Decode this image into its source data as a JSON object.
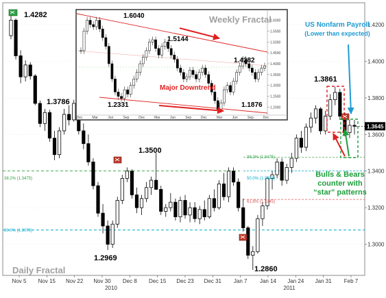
{
  "chart_data": {
    "type": "candlestick",
    "title": "Daily Fractal",
    "x_tick_labels": [
      "Nov 5",
      "Nov 15",
      "Nov 22",
      "Nov 30",
      "Dec 8",
      "Dec 15",
      "Dec 23",
      "Dec 31",
      "Jan 7",
      "Jan 14",
      "Jan 24",
      "Jan 31",
      "Feb 7"
    ],
    "x_year_labels": [
      "2010",
      "2011"
    ],
    "y_tick_labels": [
      "1.4200",
      "1.4000",
      "1.3800",
      "1.3600",
      "1.3400",
      "1.3200",
      "1.3000"
    ],
    "ylim": [
      1.283,
      1.432
    ],
    "current_price_label": "1.3645",
    "price_labels": [
      "1.4282",
      "1.3786",
      "1.3500",
      "1.2969",
      "1.2860",
      "1.3861"
    ],
    "fib_labels": [
      "38.2% (1.3475)",
      "50.0% (1.3401)",
      "61.8% (1.3347)",
      "38.2% (1.3342)",
      "61.8% (1.3245)",
      "50.0% (1.3078)"
    ],
    "candles": [
      [
        1.414,
        1.4282,
        1.412,
        1.4225
      ],
      [
        1.4225,
        1.4235,
        1.401,
        1.403
      ],
      [
        1.403,
        1.406,
        1.388,
        1.3915
      ],
      [
        1.3915,
        1.4005,
        1.389,
        1.398
      ],
      [
        1.398,
        1.3995,
        1.39,
        1.392
      ],
      [
        1.392,
        1.393,
        1.376,
        1.377
      ],
      [
        1.377,
        1.3786,
        1.364,
        1.366
      ],
      [
        1.366,
        1.374,
        1.362,
        1.372
      ],
      [
        1.372,
        1.3735,
        1.356,
        1.358
      ],
      [
        1.358,
        1.362,
        1.346,
        1.349
      ],
      [
        1.349,
        1.364,
        1.347,
        1.362
      ],
      [
        1.362,
        1.374,
        1.36,
        1.371
      ],
      [
        1.371,
        1.376,
        1.365,
        1.368
      ],
      [
        1.368,
        1.379,
        1.367,
        1.377
      ],
      [
        1.377,
        1.378,
        1.36,
        1.362
      ],
      [
        1.362,
        1.366,
        1.352,
        1.355
      ],
      [
        1.355,
        1.36,
        1.343,
        1.345
      ],
      [
        1.345,
        1.347,
        1.33,
        1.332
      ],
      [
        1.332,
        1.334,
        1.315,
        1.317
      ],
      [
        1.317,
        1.322,
        1.306,
        1.31
      ],
      [
        1.31,
        1.313,
        1.2969,
        1.3
      ],
      [
        1.3,
        1.313,
        1.298,
        1.311
      ],
      [
        1.311,
        1.326,
        1.309,
        1.324
      ],
      [
        1.324,
        1.338,
        1.322,
        1.336
      ],
      [
        1.336,
        1.342,
        1.334,
        1.34
      ],
      [
        1.34,
        1.341,
        1.325,
        1.327
      ],
      [
        1.327,
        1.331,
        1.317,
        1.32
      ],
      [
        1.32,
        1.327,
        1.316,
        1.325
      ],
      [
        1.325,
        1.334,
        1.323,
        1.331
      ],
      [
        1.331,
        1.337,
        1.327,
        1.335
      ],
      [
        1.335,
        1.35,
        1.33,
        1.33
      ],
      [
        1.33,
        1.332,
        1.316,
        1.318
      ],
      [
        1.318,
        1.322,
        1.315,
        1.32
      ],
      [
        1.32,
        1.328,
        1.318,
        1.323
      ],
      [
        1.323,
        1.325,
        1.313,
        1.315
      ],
      [
        1.315,
        1.326,
        1.312,
        1.324
      ],
      [
        1.324,
        1.327,
        1.314,
        1.316
      ],
      [
        1.316,
        1.323,
        1.312,
        1.32
      ],
      [
        1.32,
        1.323,
        1.312,
        1.314
      ],
      [
        1.314,
        1.321,
        1.311,
        1.319
      ],
      [
        1.319,
        1.324,
        1.313,
        1.315
      ],
      [
        1.315,
        1.327,
        1.314,
        1.325
      ],
      [
        1.325,
        1.33,
        1.318,
        1.32
      ],
      [
        1.32,
        1.335,
        1.319,
        1.333
      ],
      [
        1.333,
        1.339,
        1.324,
        1.326
      ],
      [
        1.326,
        1.342,
        1.323,
        1.34
      ],
      [
        1.34,
        1.342,
        1.332,
        1.334
      ],
      [
        1.334,
        1.336,
        1.318,
        1.32
      ],
      [
        1.32,
        1.325,
        1.307,
        1.309
      ],
      [
        1.309,
        1.31,
        1.292,
        1.294
      ],
      [
        1.294,
        1.299,
        1.286,
        1.296
      ],
      [
        1.296,
        1.316,
        1.295,
        1.314
      ],
      [
        1.314,
        1.323,
        1.31,
        1.321
      ],
      [
        1.321,
        1.337,
        1.319,
        1.336
      ],
      [
        1.336,
        1.34,
        1.33,
        1.338
      ],
      [
        1.338,
        1.347,
        1.336,
        1.345
      ],
      [
        1.345,
        1.347,
        1.332,
        1.335
      ],
      [
        1.335,
        1.344,
        1.333,
        1.342
      ],
      [
        1.342,
        1.35,
        1.339,
        1.347
      ],
      [
        1.347,
        1.36,
        1.345,
        1.358
      ],
      [
        1.358,
        1.362,
        1.35,
        1.353
      ],
      [
        1.353,
        1.366,
        1.351,
        1.364
      ],
      [
        1.364,
        1.372,
        1.361,
        1.369
      ],
      [
        1.369,
        1.376,
        1.366,
        1.374
      ],
      [
        1.374,
        1.375,
        1.36,
        1.362
      ],
      [
        1.362,
        1.373,
        1.36,
        1.37
      ],
      [
        1.37,
        1.382,
        1.368,
        1.379
      ],
      [
        1.379,
        1.3861,
        1.376,
        1.383
      ],
      [
        1.383,
        1.385,
        1.368,
        1.37
      ],
      [
        1.37,
        1.372,
        1.359,
        1.361
      ],
      [
        1.361,
        1.368,
        1.358,
        1.365
      ],
      [
        1.365,
        1.368,
        1.36,
        1.3645
      ]
    ]
  },
  "inset": {
    "title": "Weekly Fractal",
    "labels": [
      "1.6040",
      "1.5144",
      "1.4282",
      "1.2331",
      "1.1876"
    ],
    "trend_label": "Major Downtrend",
    "y_ticks": [
      "1.6000",
      "1.5500",
      "1.5000",
      "1.4500",
      "1.4000",
      "1.3500",
      "1.3000",
      "1.2500",
      "1.2000"
    ],
    "x_ticks": [
      "Dec",
      "Mar",
      "Jun",
      "Sep",
      "Dec",
      "Mar",
      "Jun",
      "Sep",
      "Dec",
      "Mar",
      "Jun",
      "Sep",
      "Dec"
    ],
    "closes": [
      1.46,
      1.55,
      1.6,
      1.58,
      1.57,
      1.6,
      1.56,
      1.52,
      1.48,
      1.4,
      1.33,
      1.27,
      1.25,
      1.24,
      1.28,
      1.26,
      1.3,
      1.33,
      1.36,
      1.4,
      1.43,
      1.46,
      1.5,
      1.51,
      1.47,
      1.44,
      1.48,
      1.5,
      1.47,
      1.44,
      1.42,
      1.38,
      1.36,
      1.33,
      1.34,
      1.37,
      1.35,
      1.33,
      1.36,
      1.38,
      1.35,
      1.31,
      1.27,
      1.23,
      1.19,
      1.22,
      1.28,
      1.3,
      1.27,
      1.32,
      1.36,
      1.39,
      1.42,
      1.4,
      1.38,
      1.36,
      1.33,
      1.36,
      1.38,
      1.39
    ]
  },
  "annotations": {
    "nfp": "US Nonfarm Payroll",
    "nfp_sub": "(Lower than expected)",
    "bulls_line1": "Bulls & Bears",
    "bulls_line2": "counter with",
    "bulls_line3": "“star” patterns"
  },
  "colors": {
    "bull": "#ffffff",
    "bear": "#000000",
    "fib_green": "#2ea043",
    "fib_red": "#e05555",
    "fib_cyan": "#00aacc",
    "annotation_red": "#e02020",
    "annotation_blue": "#1d9bd1",
    "annotation_green": "#1e9e3c"
  }
}
